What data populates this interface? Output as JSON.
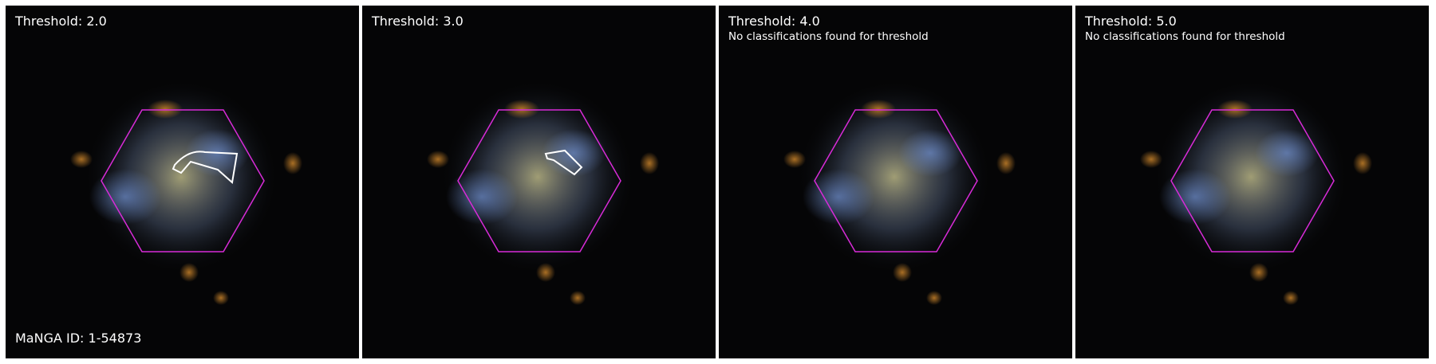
{
  "panels": [
    {
      "title": "Threshold: 2.0",
      "note": ""
    },
    {
      "title": "Threshold: 3.0",
      "note": ""
    },
    {
      "title": "Threshold: 4.0",
      "note": "No classifications found for threshold"
    },
    {
      "title": "Threshold: 5.0",
      "note": "No classifications found for threshold"
    }
  ],
  "galaxy_id": "MaNGA ID: 1-54873",
  "colors": {
    "hexagon": "#d82bd8",
    "contour": "#ffffff",
    "background": "#050506"
  }
}
